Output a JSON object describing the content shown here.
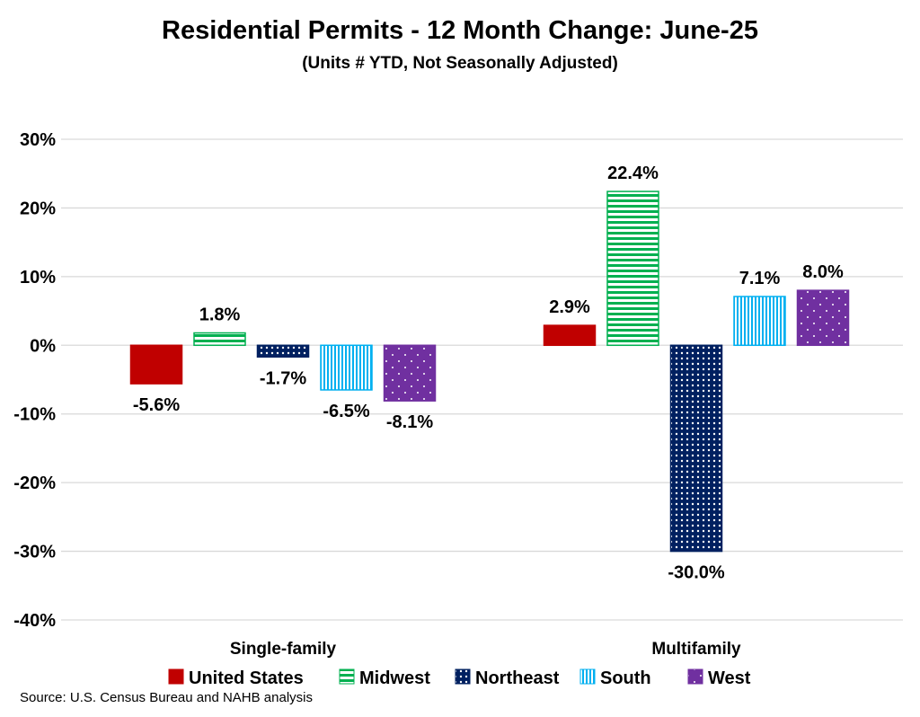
{
  "chart_data": {
    "type": "bar",
    "title": "Residential Permits - 12 Month Change:  June-25",
    "subtitle": "(Units # YTD, Not Seasonally Adjusted)",
    "categories": [
      "Single-family",
      "Multifamily"
    ],
    "series": [
      {
        "name": "United States",
        "values": [
          -5.6,
          2.9
        ],
        "color": "#C00000",
        "pattern": "solid"
      },
      {
        "name": "Midwest",
        "values": [
          1.8,
          22.4
        ],
        "color": "#00B050",
        "pattern": "horizontal-stripes"
      },
      {
        "name": "Northeast",
        "values": [
          -1.7,
          -30.0
        ],
        "color": "#002060",
        "pattern": "dotted-grid"
      },
      {
        "name": "South",
        "values": [
          -6.5,
          7.1
        ],
        "color": "#00B0F0",
        "pattern": "vertical-stripes"
      },
      {
        "name": "West",
        "values": [
          -8.1,
          8.0
        ],
        "color": "#7030A0",
        "pattern": "sparse-dots"
      }
    ],
    "data_labels": [
      [
        "-5.6%",
        "2.9%"
      ],
      [
        "1.8%",
        "22.4%"
      ],
      [
        "-1.7%",
        "-30.0%"
      ],
      [
        "-6.5%",
        "7.1%"
      ],
      [
        "-8.1%",
        "8.0%"
      ]
    ],
    "yticks": [
      "30%",
      "20%",
      "10%",
      "0%",
      "-10%",
      "-20%",
      "-30%",
      "-40%"
    ],
    "ytick_values": [
      30,
      20,
      10,
      0,
      -10,
      -20,
      -30,
      -40
    ],
    "ylim": [
      -40,
      30
    ],
    "grid": true,
    "legend": "bottom",
    "xlabel": "",
    "ylabel": ""
  },
  "source": "Source: U.S. Census Bureau and NAHB analysis"
}
